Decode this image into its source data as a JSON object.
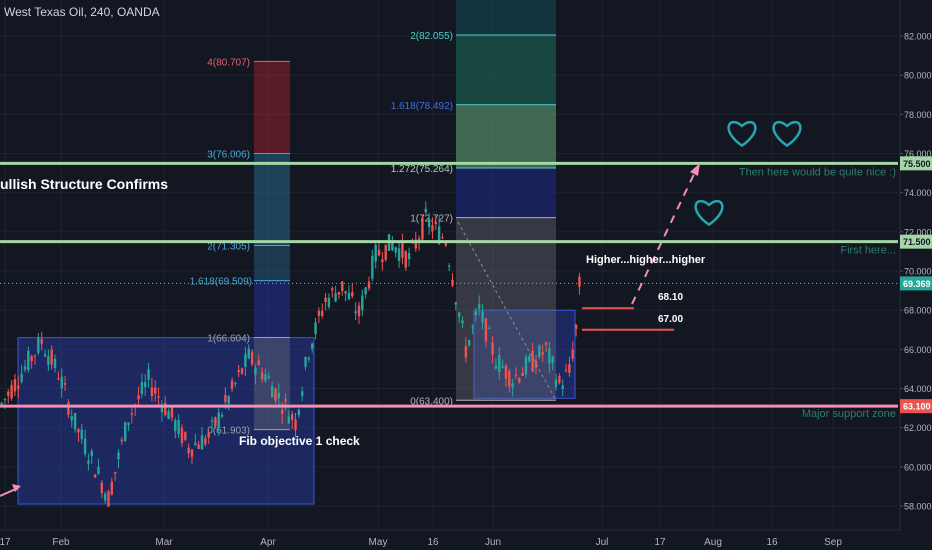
{
  "header": {
    "title": "West Texas Oil, 240, OANDA"
  },
  "colors": {
    "background": "#131722",
    "grid": "#1f2331",
    "axis_text": "#b2b5be",
    "bull_candle": "#26a69a",
    "bear_candle": "#ef5350",
    "resistance_line": "#a5d6a7",
    "support_line": "#f48fb1",
    "fib_teal": "#4dd0c4",
    "fib_blue": "#3f51b5",
    "annotation_teal": "#2e7d6f",
    "heart": "#26a6b0"
  },
  "chart_data": {
    "type": "candlestick",
    "instrument": "West Texas Oil",
    "timeframe": "240",
    "source": "OANDA",
    "x_tick_labels": [
      "17",
      "Feb",
      "Mar",
      "Apr",
      "May",
      "16",
      "Jun",
      "Jul",
      "17",
      "Aug",
      "16",
      "Sep"
    ],
    "y_tick_labels": [
      "58.000",
      "60.000",
      "62.000",
      "64.000",
      "66.000",
      "68.000",
      "70.000",
      "72.000",
      "74.000",
      "76.000",
      "78.000",
      "80.000",
      "82.000"
    ],
    "ylim": [
      56.0,
      83.5
    ],
    "price_path": [
      [
        0,
        63.2
      ],
      [
        6,
        64.8
      ],
      [
        12,
        66.4
      ],
      [
        17,
        64.8
      ],
      [
        22,
        62.2
      ],
      [
        28,
        60.0
      ],
      [
        32,
        58.4
      ],
      [
        38,
        62.5
      ],
      [
        44,
        64.4
      ],
      [
        50,
        62.8
      ],
      [
        56,
        61.0
      ],
      [
        62,
        61.5
      ],
      [
        68,
        63.5
      ],
      [
        74,
        65.6
      ],
      [
        79,
        64.7
      ],
      [
        84,
        63.3
      ],
      [
        88,
        62.3
      ],
      [
        92,
        66.0
      ],
      [
        97,
        68.5
      ],
      [
        102,
        69.2
      ],
      [
        107,
        67.8
      ],
      [
        112,
        70.8
      ],
      [
        117,
        71.4
      ],
      [
        122,
        70.6
      ],
      [
        127,
        72.6
      ],
      [
        133,
        71.6
      ],
      [
        139,
        66.0
      ],
      [
        143,
        68.0
      ],
      [
        148,
        65.5
      ],
      [
        153,
        64.5
      ],
      [
        158,
        65.2
      ],
      [
        163,
        66.0
      ],
      [
        167,
        64.2
      ],
      [
        170,
        64.8
      ],
      [
        172,
        67.0
      ],
      [
        173,
        69.2
      ]
    ],
    "current_price": "69.369",
    "horizontal_levels": [
      {
        "price": 75.5,
        "axis_label": "75.500",
        "text": "Then here would be quite nice :)"
      },
      {
        "price": 71.5,
        "axis_label": "71.500",
        "text": "First here..."
      },
      {
        "price": 63.1,
        "axis_label": "63.100",
        "text": "Major support zone"
      }
    ],
    "fib_left": {
      "levels": [
        {
          "label": "4(80.707)",
          "price": 80.707
        },
        {
          "label": "3(76.006)",
          "price": 76.006
        },
        {
          "label": "2(71.305)",
          "price": 71.305
        },
        {
          "label": "1.618(69.509)",
          "price": 69.509
        },
        {
          "label": "1(66.604)",
          "price": 66.604
        },
        {
          "label": "0(61.903)",
          "price": 61.903
        }
      ]
    },
    "fib_right": {
      "levels": [
        {
          "label": "2(82.055)",
          "price": 82.055
        },
        {
          "label": "1.618(78.492)",
          "price": 78.492
        },
        {
          "label": "1.272(75.264)",
          "price": 75.264
        },
        {
          "label": "1(72.727)",
          "price": 72.727
        },
        {
          "label": "0(63.400)",
          "price": 63.4
        }
      ]
    },
    "target_labels": [
      "68.10",
      "67.00"
    ],
    "annotations": {
      "bullish": "ullish Structure Confirms",
      "fib_check": "Fib objective 1 check",
      "higher": "Higher...higher...higher"
    }
  }
}
